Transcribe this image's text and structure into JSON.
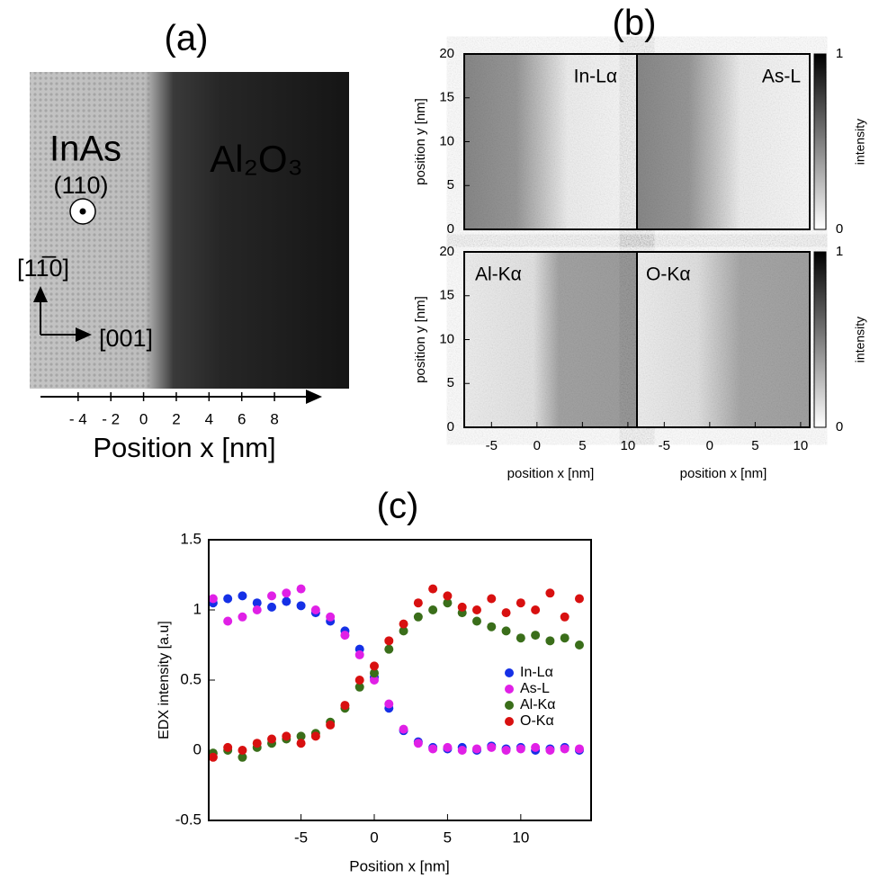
{
  "chart_data": [
    {
      "type": "image",
      "title": "(a)",
      "texts": [
        "InAs",
        "(110)",
        "Al₂O₃",
        "[11̅0]",
        "[001]"
      ],
      "xlabel": "Position x [nm]",
      "xlim": [
        -6.3,
        10.8
      ],
      "xticks": [
        {
          "value": -4,
          "label": "- 4"
        },
        {
          "value": -2,
          "label": "- 2"
        },
        0,
        2,
        4,
        6,
        8
      ]
    },
    {
      "type": "heatmap",
      "title": "(b)",
      "maps": [
        "In-Lα",
        "As-L",
        "Al-Kα",
        "O-Kα"
      ],
      "xlabel": "position x [nm]",
      "ylabel": "position y [nm]",
      "xlim": [
        -8,
        11
      ],
      "xticks": [
        -5,
        0,
        5,
        10
      ],
      "ylim": [
        0,
        20
      ],
      "yticks": [
        0,
        5,
        10,
        15,
        20
      ],
      "colorbar_label": "intensity",
      "colorbar_ticks": [
        0,
        1
      ]
    },
    {
      "type": "scatter",
      "title": "(c)",
      "xlabel": "Position x [nm]",
      "ylabel": "EDX intensity [a.u]",
      "xlim": [
        -11.3,
        14.8
      ],
      "xticks": [
        -5,
        0,
        5,
        10
      ],
      "ylim": [
        -0.5,
        1.5
      ],
      "yticks": [
        -0.5,
        0,
        0.5,
        1,
        1.5
      ],
      "x": [
        -11,
        -10,
        -9,
        -8,
        -7,
        -6,
        -5,
        -4,
        -3,
        -2,
        -1,
        0,
        1,
        2,
        3,
        4,
        5,
        6,
        7,
        8,
        9,
        10,
        11,
        12,
        13,
        14
      ],
      "series": [
        {
          "name": "In-Lα",
          "color": "#1530e6",
          "values": [
            1.05,
            1.08,
            1.1,
            1.05,
            1.02,
            1.06,
            1.03,
            0.98,
            0.92,
            0.85,
            0.72,
            0.52,
            0.3,
            0.14,
            0.06,
            0.02,
            0.01,
            0.02,
            0.0,
            0.03,
            0.01,
            0.02,
            0.0,
            0.01,
            0.02,
            0.0
          ]
        },
        {
          "name": "As-L",
          "color": "#e020e6",
          "values": [
            1.08,
            0.92,
            0.95,
            1.0,
            1.1,
            1.12,
            1.15,
            1.0,
            0.95,
            0.82,
            0.68,
            0.5,
            0.33,
            0.15,
            0.05,
            0.01,
            0.02,
            0.0,
            0.01,
            0.02,
            0.0,
            0.01,
            0.02,
            0.0,
            0.01,
            0.01
          ]
        },
        {
          "name": "Al-Kα",
          "color": "#3a6e1a",
          "values": [
            -0.02,
            0.0,
            -0.05,
            0.02,
            0.05,
            0.08,
            0.1,
            0.12,
            0.2,
            0.3,
            0.45,
            0.55,
            0.72,
            0.85,
            0.95,
            1.0,
            1.05,
            0.98,
            0.92,
            0.88,
            0.85,
            0.8,
            0.82,
            0.78,
            0.8,
            0.75
          ]
        },
        {
          "name": "O-Kα",
          "color": "#d81010",
          "values": [
            -0.05,
            0.02,
            0.0,
            0.05,
            0.08,
            0.1,
            0.05,
            0.1,
            0.18,
            0.32,
            0.5,
            0.6,
            0.78,
            0.9,
            1.05,
            1.15,
            1.1,
            1.02,
            1.0,
            1.08,
            0.98,
            1.05,
            1.0,
            1.12,
            0.95,
            1.08
          ]
        }
      ]
    }
  ]
}
